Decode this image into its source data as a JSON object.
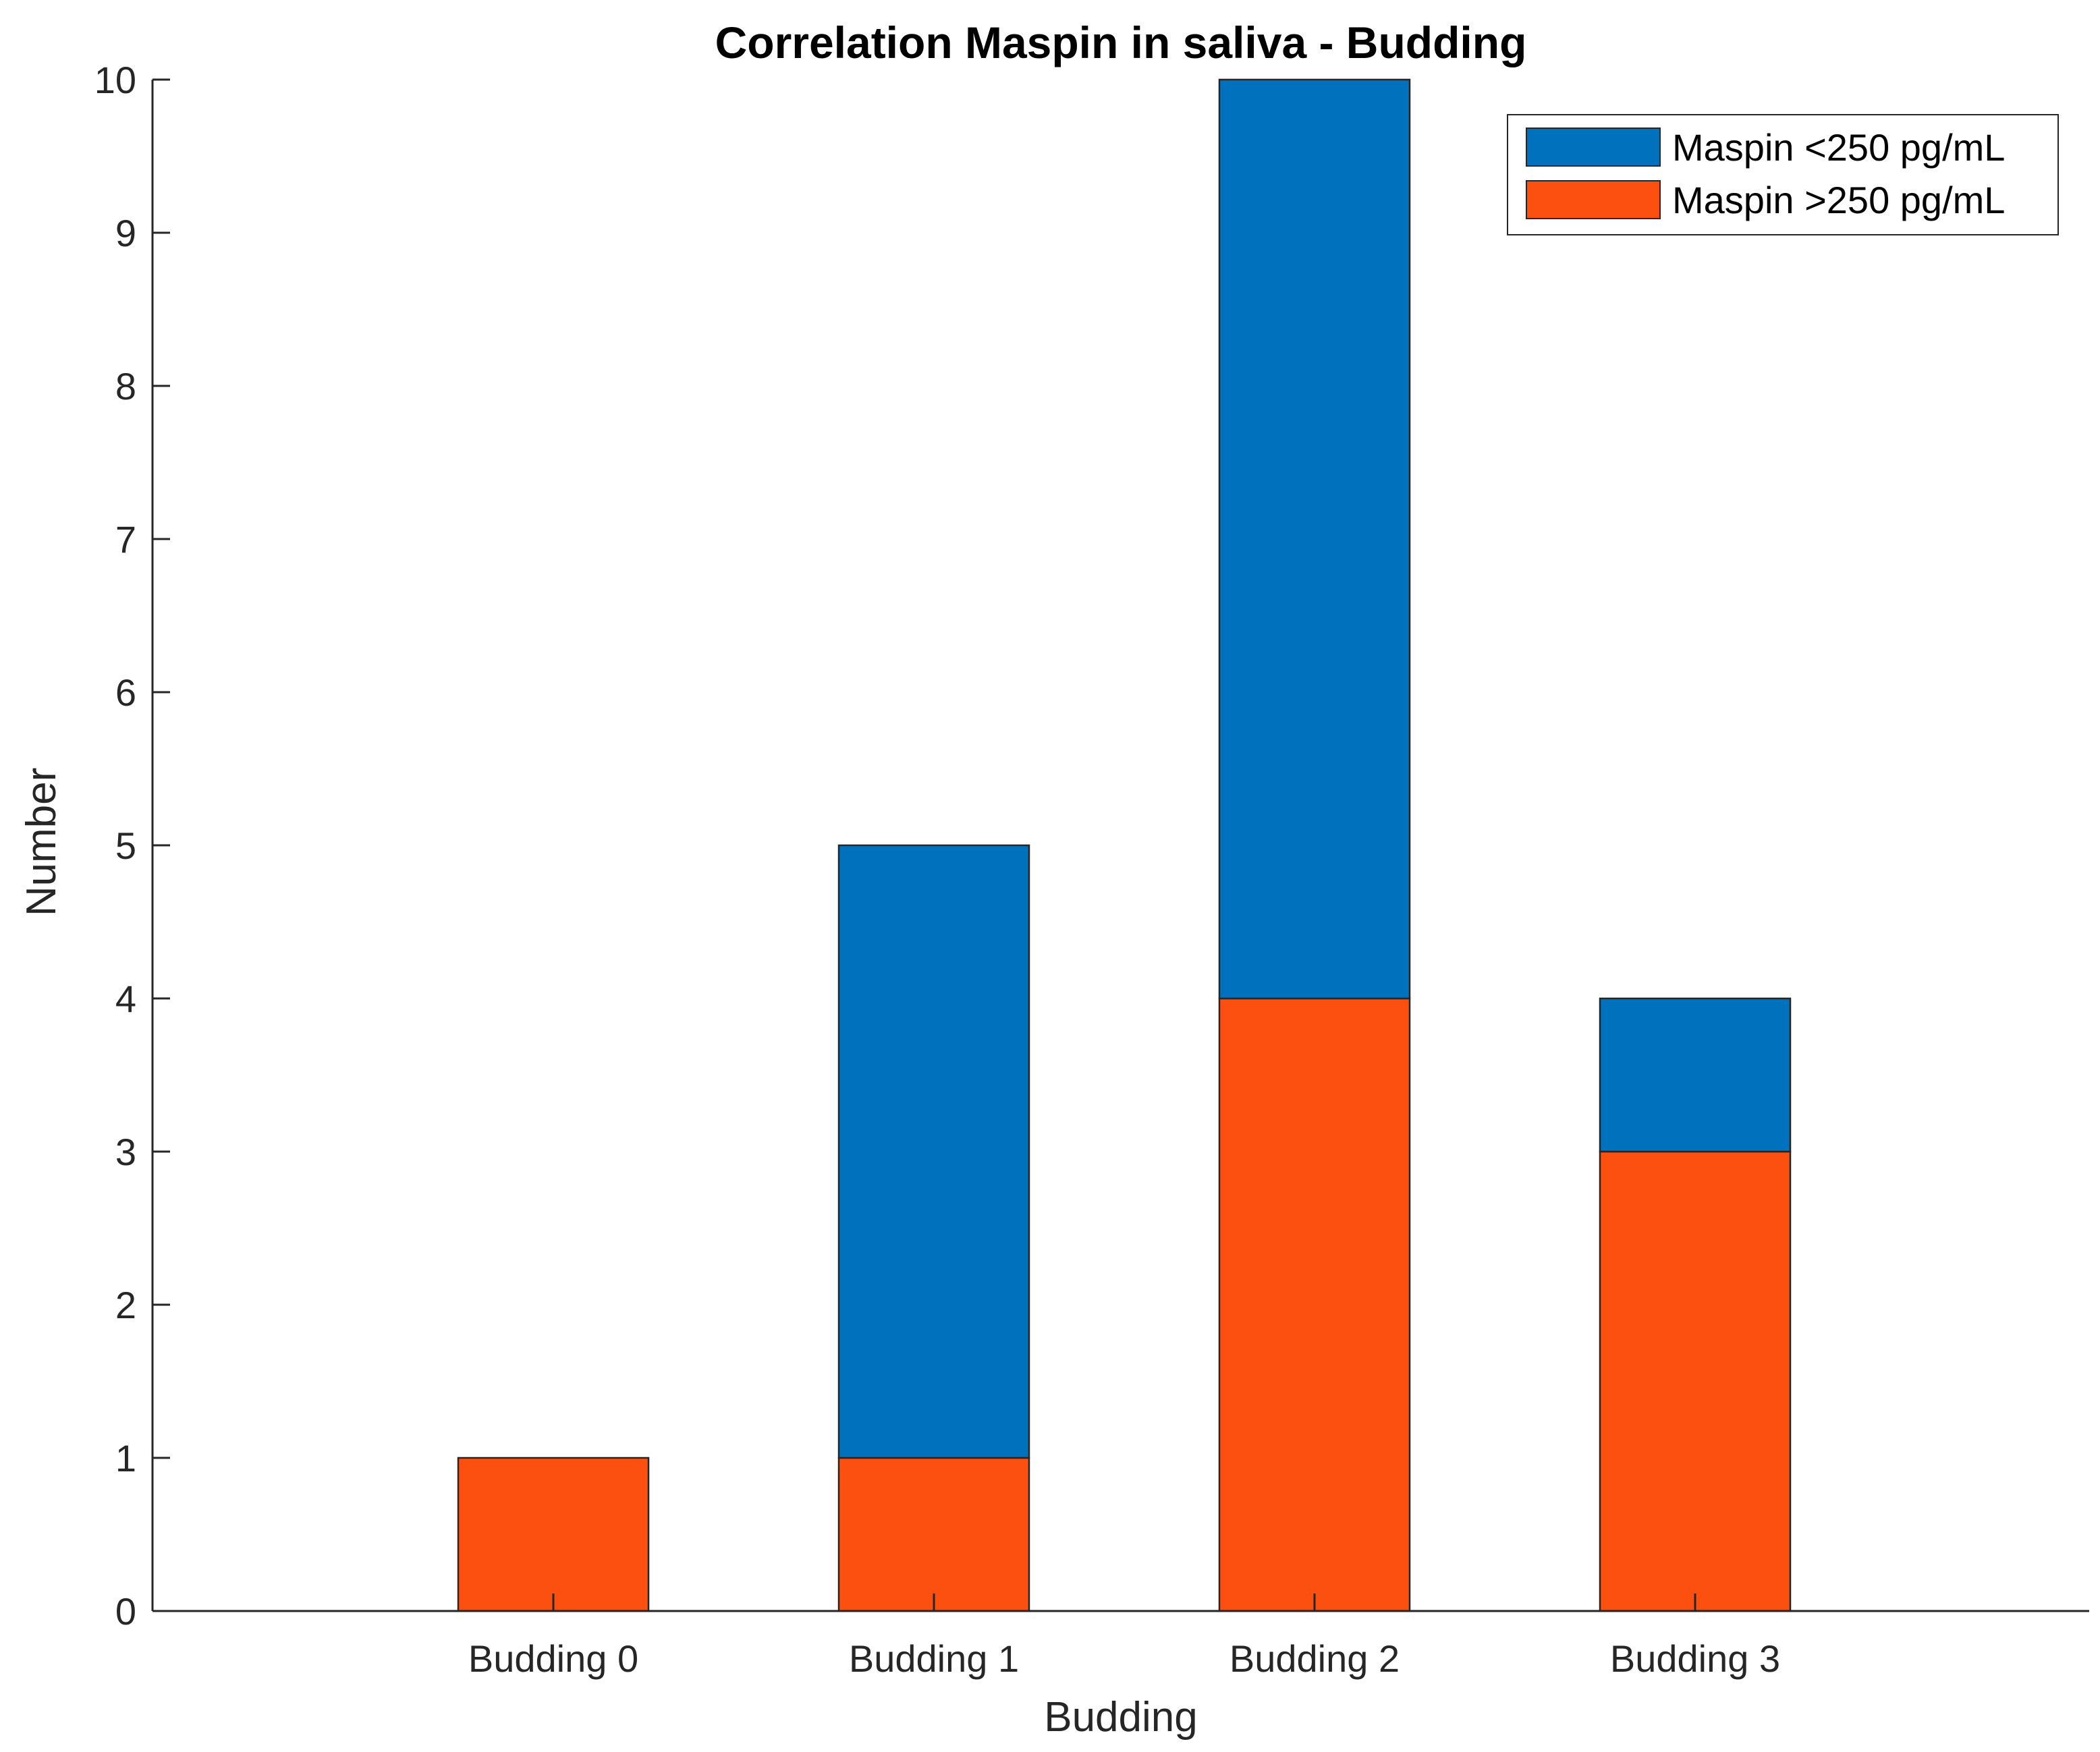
{
  "chart_data": {
    "type": "bar",
    "stacked": true,
    "title": "Correlation Maspin in saliva - Budding",
    "xlabel": "Budding",
    "ylabel": "Number",
    "categories": [
      "Budding 0",
      "Budding 1",
      "Budding 2",
      "Budding 3"
    ],
    "series": [
      {
        "name": "Maspin >250 pg/mL",
        "color": "#FC5011",
        "values": [
          1,
          1,
          4,
          3
        ]
      },
      {
        "name": "Maspin <250 pg/mL",
        "color": "#0072BD",
        "values": [
          0,
          4,
          6,
          1
        ]
      }
    ],
    "legend_order": [
      "Maspin <250 pg/mL",
      "Maspin >250 pg/mL"
    ],
    "ylim": [
      0,
      10
    ],
    "yticks": [
      "0",
      "1",
      "2",
      "3",
      "4",
      "5",
      "6",
      "7",
      "8",
      "9",
      "10"
    ],
    "grid": false,
    "legend_position": "top-right"
  }
}
